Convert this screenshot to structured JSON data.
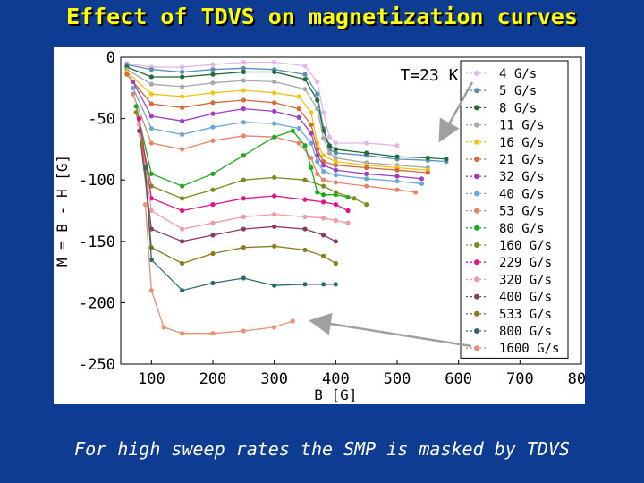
{
  "title": "Effect of TDVS on magnetization curves",
  "caption": "For high sweep rates the SMP is masked by TDVS",
  "colors": {
    "background": "#0f3c93",
    "title": "#ffff00",
    "caption": "#ffffff"
  },
  "chart_data": {
    "type": "line",
    "xlabel": "B [G]",
    "ylabel": "M = B - H [G]",
    "xlim": [
      50,
      800
    ],
    "ylim": [
      -250,
      0
    ],
    "xticks": [
      100,
      200,
      300,
      400,
      500,
      600,
      700,
      800
    ],
    "yticks": [
      0,
      -50,
      -100,
      -150,
      -200,
      -250
    ],
    "annotation": "T=23 K",
    "legend_position": "right",
    "grid": false,
    "series": [
      {
        "name": "4 G/s",
        "color": "#e2b6e6",
        "x": [
          60,
          100,
          150,
          200,
          250,
          300,
          350,
          370,
          380,
          390,
          400,
          450,
          500
        ],
        "y": [
          -5,
          -8,
          -8,
          -6,
          -4,
          -4,
          -7,
          -20,
          -45,
          -65,
          -70,
          -70,
          -72
        ]
      },
      {
        "name": "5 G/s",
        "color": "#5b8fb8",
        "x": [
          60,
          100,
          150,
          200,
          250,
          300,
          350,
          370,
          380,
          390,
          400,
          450,
          500,
          550,
          580
        ],
        "y": [
          -6,
          -10,
          -12,
          -10,
          -9,
          -10,
          -14,
          -30,
          -58,
          -75,
          -78,
          -80,
          -83,
          -84,
          -85
        ]
      },
      {
        "name": "8 G/s",
        "color": "#1f6b3a",
        "x": [
          60,
          100,
          150,
          200,
          250,
          300,
          350,
          370,
          380,
          390,
          400,
          450,
          500,
          550,
          580
        ],
        "y": [
          -8,
          -16,
          -16,
          -14,
          -12,
          -12,
          -18,
          -35,
          -60,
          -72,
          -75,
          -78,
          -81,
          -82,
          -83
        ]
      },
      {
        "name": "11 G/s",
        "color": "#a8a8a8",
        "x": [
          60,
          100,
          150,
          200,
          250,
          300,
          350,
          370,
          380,
          390,
          400,
          450,
          500,
          550
        ],
        "y": [
          -10,
          -22,
          -24,
          -21,
          -19,
          -20,
          -26,
          -42,
          -66,
          -78,
          -82,
          -86,
          -88,
          -90
        ]
      },
      {
        "name": "16 G/s",
        "color": "#f0c419",
        "x": [
          60,
          100,
          150,
          200,
          250,
          300,
          340,
          360,
          370,
          380,
          400,
          450,
          500,
          550
        ],
        "y": [
          -12,
          -30,
          -32,
          -29,
          -27,
          -29,
          -32,
          -45,
          -70,
          -80,
          -85,
          -88,
          -90,
          -92
        ]
      },
      {
        "name": "21 G/s",
        "color": "#d66a3a",
        "x": [
          60,
          100,
          150,
          200,
          250,
          300,
          340,
          360,
          370,
          380,
          400,
          450,
          500,
          550
        ],
        "y": [
          -14,
          -38,
          -41,
          -37,
          -35,
          -37,
          -42,
          -55,
          -75,
          -85,
          -88,
          -90,
          -92,
          -94
        ]
      },
      {
        "name": "32 G/s",
        "color": "#a040c0",
        "x": [
          70,
          100,
          150,
          200,
          250,
          300,
          340,
          360,
          370,
          380,
          400,
          450,
          500,
          540
        ],
        "y": [
          -20,
          -48,
          -52,
          -46,
          -42,
          -44,
          -49,
          -62,
          -80,
          -88,
          -92,
          -95,
          -97,
          -99
        ]
      },
      {
        "name": "40 G/s",
        "color": "#6aa7d6",
        "x": [
          70,
          100,
          150,
          200,
          250,
          300,
          340,
          360,
          370,
          380,
          400,
          450,
          500,
          540
        ],
        "y": [
          -25,
          -58,
          -63,
          -57,
          -53,
          -54,
          -58,
          -70,
          -85,
          -93,
          -96,
          -99,
          -101,
          -103
        ]
      },
      {
        "name": "53 G/s",
        "color": "#e88468",
        "x": [
          70,
          100,
          150,
          200,
          250,
          300,
          340,
          360,
          370,
          380,
          400,
          450,
          500,
          530
        ],
        "y": [
          -30,
          -70,
          -75,
          -68,
          -64,
          -65,
          -70,
          -82,
          -95,
          -100,
          -102,
          -105,
          -108,
          -110
        ]
      },
      {
        "name": "80 G/s",
        "color": "#1ea81e",
        "x": [
          75,
          100,
          150,
          200,
          250,
          300,
          330,
          350,
          360,
          370,
          380,
          400,
          420
        ],
        "y": [
          -40,
          -95,
          -105,
          -95,
          -80,
          -65,
          -60,
          -72,
          -90,
          -110,
          -112,
          -112,
          -114
        ]
      },
      {
        "name": "160 G/s",
        "color": "#7d8a1f",
        "x": [
          75,
          100,
          150,
          200,
          250,
          300,
          350,
          380,
          400,
          430,
          450
        ],
        "y": [
          -45,
          -105,
          -115,
          -108,
          -100,
          -98,
          -100,
          -105,
          -110,
          -115,
          -120
        ]
      },
      {
        "name": "229 G/s",
        "color": "#e0138a",
        "x": [
          80,
          100,
          150,
          200,
          250,
          300,
          350,
          380,
          400,
          420
        ],
        "y": [
          -50,
          -115,
          -125,
          -120,
          -115,
          -113,
          -116,
          -118,
          -120,
          -125
        ]
      },
      {
        "name": "320 G/s",
        "color": "#f09aa8",
        "x": [
          80,
          100,
          150,
          200,
          250,
          300,
          350,
          380,
          400,
          420
        ],
        "y": [
          -55,
          -125,
          -140,
          -135,
          -130,
          -128,
          -130,
          -131,
          -133,
          -135
        ]
      },
      {
        "name": "400 G/s",
        "color": "#8a3a60",
        "x": [
          80,
          100,
          150,
          200,
          250,
          300,
          350,
          380,
          400
        ],
        "y": [
          -60,
          -140,
          -150,
          -145,
          -140,
          -138,
          -140,
          -145,
          -150
        ]
      },
      {
        "name": "533 G/s",
        "color": "#8a7a20",
        "x": [
          85,
          100,
          150,
          200,
          250,
          300,
          350,
          380,
          400
        ],
        "y": [
          -70,
          -155,
          -168,
          -160,
          -155,
          -154,
          -157,
          -162,
          -168
        ]
      },
      {
        "name": "800 G/s",
        "color": "#2f6a6a",
        "x": [
          90,
          100,
          150,
          200,
          250,
          300,
          350,
          380,
          400
        ],
        "y": [
          -90,
          -165,
          -190,
          -184,
          -180,
          -186,
          -185,
          -185,
          -185
        ]
      },
      {
        "name": "1600 G/s",
        "color": "#e89070",
        "x": [
          90,
          100,
          120,
          150,
          200,
          250,
          300,
          330
        ],
        "y": [
          -120,
          -190,
          -220,
          -225,
          -225,
          -223,
          -220,
          -215
        ]
      }
    ]
  }
}
